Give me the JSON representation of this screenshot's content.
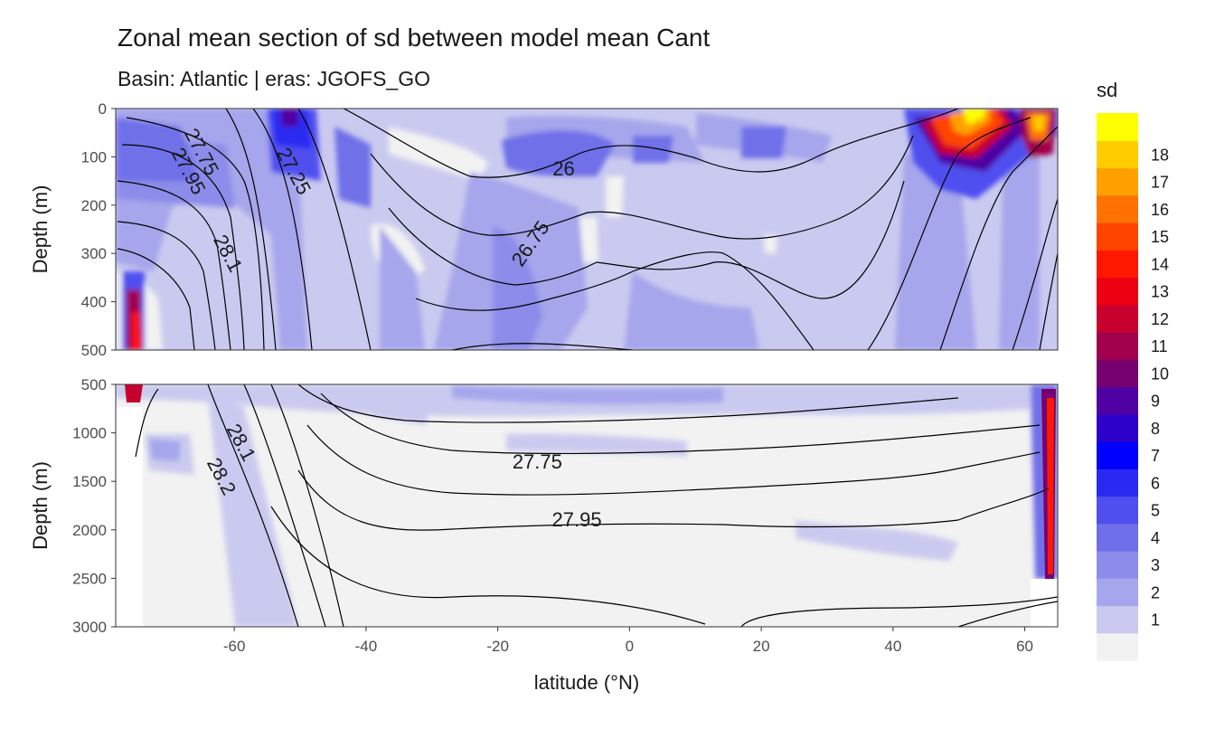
{
  "chart_data": {
    "type": "heatmap",
    "title": "Zonal mean section of sd between model mean Cant",
    "subtitle": "Basin: Atlantic | eras: JGOFS_GO",
    "xlabel": "latitude (°N)",
    "ylabel": "Depth (m)",
    "xlim": [
      -78,
      65
    ],
    "x_ticks": [
      -60,
      -40,
      -20,
      0,
      20,
      40,
      60
    ],
    "panels": [
      {
        "ylim": [
          0,
          500
        ],
        "y_ticks": [
          0,
          100,
          200,
          300,
          400,
          500
        ]
      },
      {
        "ylim": [
          500,
          3000
        ],
        "y_ticks": [
          500,
          1000,
          1500,
          2000,
          2500,
          3000
        ]
      }
    ],
    "legend": {
      "title": "sd",
      "position": "right",
      "levels": [
        1,
        2,
        3,
        4,
        5,
        6,
        7,
        8,
        9,
        10,
        11,
        12,
        13,
        14,
        15,
        16,
        17,
        18
      ],
      "colors": [
        "#f2f2f2",
        "#cacaf0",
        "#a6a6ec",
        "#8c8cea",
        "#6f6fe9",
        "#4f4ff0",
        "#2929f2",
        "#0000ff",
        "#2d00c9",
        "#4f00a3",
        "#760070",
        "#a0004c",
        "#c8002d",
        "#ec0012",
        "#ff1800",
        "#ff4400",
        "#ff7200",
        "#ffa000",
        "#ffcc00",
        "#ffff00"
      ]
    },
    "contour_labels": [
      {
        "text": "27.75",
        "lat": -65,
        "depth": 90
      },
      {
        "text": "27.95",
        "lat": -67,
        "depth": 130
      },
      {
        "text": "27.25",
        "lat": -51,
        "depth": 130
      },
      {
        "text": "28.1",
        "lat": -61,
        "depth": 300
      },
      {
        "text": "26",
        "lat": -10,
        "depth": 125
      },
      {
        "text": "26.75",
        "lat": -15,
        "depth": 280
      },
      {
        "text": "28.1",
        "lat": -59,
        "depth": 1100
      },
      {
        "text": "28.2",
        "lat": -62,
        "depth": 1450
      },
      {
        "text": "27.75",
        "lat": -14,
        "depth": 1300
      },
      {
        "text": "27.95",
        "lat": -8,
        "depth": 1900
      }
    ]
  }
}
